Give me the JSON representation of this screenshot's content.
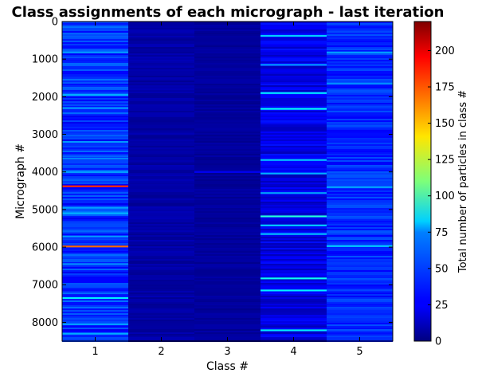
{
  "chart_data": {
    "type": "heatmap",
    "title": "Class assignments of each micrograph - last iteration",
    "xlabel": "Class #",
    "ylabel": "Micrograph #",
    "x_categories": [
      "1",
      "2",
      "3",
      "4",
      "5"
    ],
    "y_ticks": [
      "0",
      "1000",
      "2000",
      "3000",
      "4000",
      "5000",
      "6000",
      "7000",
      "8000"
    ],
    "ylim": [
      8500,
      0
    ],
    "colormap": "jet",
    "colorbar": {
      "label": "Total number of particles in class #",
      "range": [
        0,
        220
      ],
      "ticks": [
        "0",
        "25",
        "50",
        "75",
        "100",
        "125",
        "150",
        "175",
        "200"
      ]
    },
    "column_baseline_values": [
      38,
      8,
      6,
      22,
      36
    ],
    "highlight_rows": [
      {
        "class": "1",
        "micrograph": 820,
        "value": 60
      },
      {
        "class": "1",
        "micrograph": 1950,
        "value": 65
      },
      {
        "class": "1",
        "micrograph": 2300,
        "value": 62
      },
      {
        "class": "1",
        "micrograph": 3200,
        "value": 60
      },
      {
        "class": "1",
        "micrograph": 3650,
        "value": 58
      },
      {
        "class": "1",
        "micrograph": 4000,
        "value": 62
      },
      {
        "class": "1",
        "micrograph": 4380,
        "value": 185
      },
      {
        "class": "1",
        "micrograph": 4950,
        "value": 62
      },
      {
        "class": "1",
        "micrograph": 5100,
        "value": 66
      },
      {
        "class": "1",
        "micrograph": 5720,
        "value": 60
      },
      {
        "class": "1",
        "micrograph": 5980,
        "value": 170
      },
      {
        "class": "1",
        "micrograph": 6450,
        "value": 58
      },
      {
        "class": "1",
        "micrograph": 7350,
        "value": 80
      },
      {
        "class": "1",
        "micrograph": 8050,
        "value": 62
      },
      {
        "class": "1",
        "micrograph": 8300,
        "value": 65
      },
      {
        "class": "3",
        "micrograph": 4000,
        "value": 25
      },
      {
        "class": "4",
        "micrograph": 380,
        "value": 72
      },
      {
        "class": "4",
        "micrograph": 1150,
        "value": 60
      },
      {
        "class": "4",
        "micrograph": 1900,
        "value": 78
      },
      {
        "class": "4",
        "micrograph": 2320,
        "value": 82
      },
      {
        "class": "4",
        "micrograph": 3680,
        "value": 70
      },
      {
        "class": "4",
        "micrograph": 4040,
        "value": 65
      },
      {
        "class": "4",
        "micrograph": 4560,
        "value": 62
      },
      {
        "class": "4",
        "micrograph": 5180,
        "value": 90
      },
      {
        "class": "4",
        "micrograph": 5420,
        "value": 72
      },
      {
        "class": "4",
        "micrograph": 5650,
        "value": 68
      },
      {
        "class": "4",
        "micrograph": 6830,
        "value": 85
      },
      {
        "class": "4",
        "micrograph": 7150,
        "value": 80
      },
      {
        "class": "4",
        "micrograph": 8210,
        "value": 78
      },
      {
        "class": "5",
        "micrograph": 820,
        "value": 62
      },
      {
        "class": "5",
        "micrograph": 1650,
        "value": 58
      },
      {
        "class": "5",
        "micrograph": 4400,
        "value": 66
      },
      {
        "class": "5",
        "micrograph": 5970,
        "value": 72
      }
    ]
  }
}
